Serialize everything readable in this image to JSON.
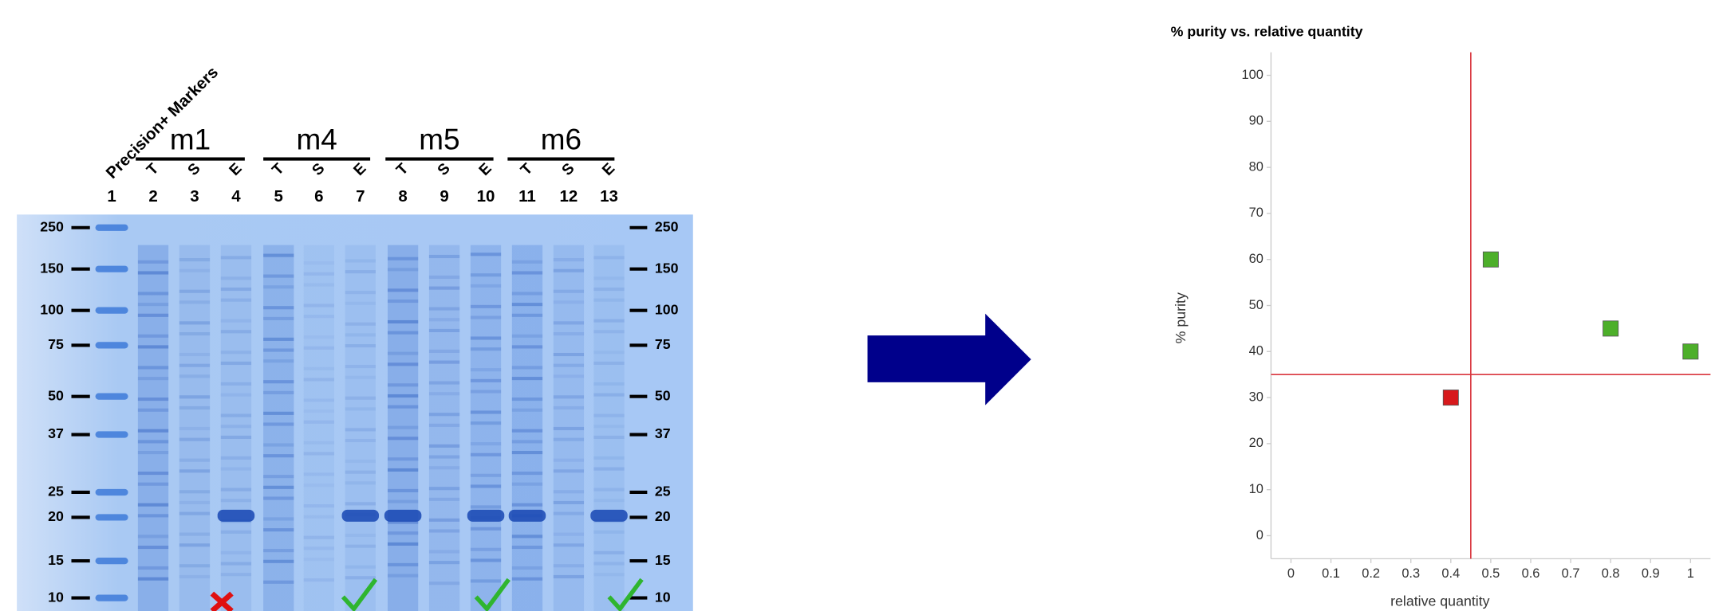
{
  "gel": {
    "marker_label": "Precision+ Markers",
    "groups": [
      {
        "name": "m1",
        "lanes": [
          "T",
          "S",
          "E"
        ]
      },
      {
        "name": "m4",
        "lanes": [
          "T",
          "S",
          "E"
        ]
      },
      {
        "name": "m5",
        "lanes": [
          "T",
          "S",
          "E"
        ]
      },
      {
        "name": "m6",
        "lanes": [
          "T",
          "S",
          "E"
        ]
      }
    ],
    "lane_numbers": [
      1,
      2,
      3,
      4,
      5,
      6,
      7,
      8,
      9,
      10,
      11,
      12,
      13
    ],
    "sizes": [
      250,
      150,
      100,
      75,
      50,
      37,
      25,
      20,
      15,
      10
    ]
  },
  "chart_data": {
    "type": "scatter",
    "title": "% purity vs. relative quantity",
    "x_label": "relative quantity",
    "y_label": "% purity",
    "x": [
      0.4,
      0.5,
      0.8,
      1
    ],
    "y": [
      30,
      60,
      45,
      40
    ],
    "colors": [
      "#d7191c",
      "#4daf2a",
      "#4daf2a",
      "#4daf2a"
    ],
    "reference_lines": {
      "x": 0.45,
      "y": 35,
      "color": "#d9363e"
    },
    "xlim": [
      -0.05,
      1.05
    ],
    "ylim": [
      -5,
      105
    ],
    "xticks": [
      0,
      0.1,
      0.2,
      0.3,
      0.4,
      0.5,
      0.6,
      0.7,
      0.8,
      0.9,
      1
    ],
    "yticks": [
      0,
      10,
      20,
      30,
      40,
      50,
      60,
      70,
      80,
      90,
      100
    ]
  }
}
